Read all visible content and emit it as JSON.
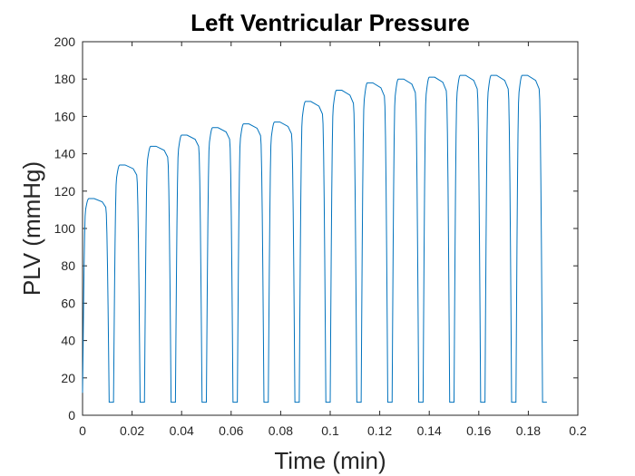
{
  "chart_data": {
    "type": "line",
    "title": "Left Ventricular Pressure",
    "xlabel": "Time (min)",
    "ylabel": "PLV (mmHg)",
    "xlim": [
      0,
      0.2
    ],
    "ylim": [
      0,
      200
    ],
    "xticks": [
      0,
      0.02,
      0.04,
      0.06,
      0.08,
      0.1,
      0.12,
      0.14,
      0.16,
      0.18,
      0.2
    ],
    "xtick_labels": [
      "0",
      "0.02",
      "0.04",
      "0.06",
      "0.08",
      "0.1",
      "0.12",
      "0.14",
      "0.16",
      "0.18",
      "0.2"
    ],
    "yticks": [
      0,
      20,
      40,
      60,
      80,
      100,
      120,
      140,
      160,
      180,
      200
    ],
    "ytick_labels": [
      "0",
      "20",
      "40",
      "60",
      "80",
      "100",
      "120",
      "140",
      "160",
      "180",
      "200"
    ],
    "grid": false,
    "line_color": "#0072BD",
    "beat_period_min": 0.0125,
    "beats": [
      {
        "start": 0.0,
        "peak": 116
      },
      {
        "start": 0.0125,
        "peak": 134
      },
      {
        "start": 0.025,
        "peak": 144
      },
      {
        "start": 0.0375,
        "peak": 150
      },
      {
        "start": 0.05,
        "peak": 154
      },
      {
        "start": 0.0625,
        "peak": 156
      },
      {
        "start": 0.075,
        "peak": 157
      },
      {
        "start": 0.0875,
        "peak": 168
      },
      {
        "start": 0.1,
        "peak": 174
      },
      {
        "start": 0.1125,
        "peak": 178
      },
      {
        "start": 0.125,
        "peak": 180
      },
      {
        "start": 0.1375,
        "peak": 181
      },
      {
        "start": 0.15,
        "peak": 182
      },
      {
        "start": 0.1625,
        "peak": 182
      },
      {
        "start": 0.175,
        "peak": 182
      }
    ],
    "baseline_pressure": 7,
    "x_end": 0.1875
  }
}
